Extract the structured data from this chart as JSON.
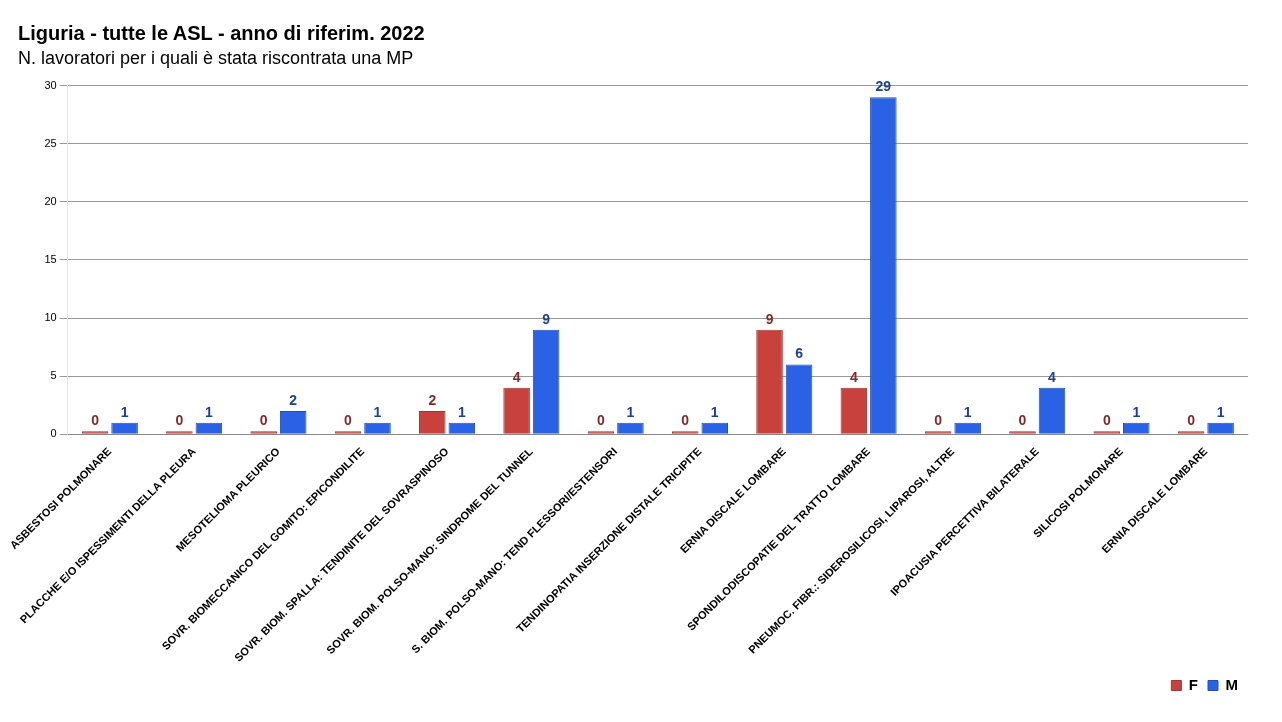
{
  "chart_data": {
    "type": "bar",
    "title": "Liguria - tutte le ASL - anno di riferim. 2022",
    "subtitle": "N. lavoratori per i quali è stata riscontrata una MP",
    "categories": [
      "ASBESTOSI POLMONARE",
      "PLACCHE E/O ISPESSIMENTI DELLA PLEURA",
      "MESOTELIOMA PLEURICO",
      "SOVR. BIOMECCANICO DEL GOMITO: EPICONDILITE",
      "SOVR. BIOM. SPALLA: TENDINITE DEL SOVRASPINOSO",
      "SOVR. BIOM. POLSO-MANO: SINDROME DEL TUNNEL",
      "S. BIOM. POLSO-MANO: TEND FLESSORI/ESTENSORI",
      "TENDINOPATIA INSERZIONE DISTALE TRICIPITE",
      "ERNIA DISCALE LOMBARE",
      "SPONDILODISCOPATIE DEL TRATTO LOMBARE",
      "PNEUMOC. FIBR.: SIDEROSILICOSI, LIPAROSI, ALTRE",
      "IPOACUSIA PERCETTIVA BILATERALE",
      "SILICOSI POLMONARE",
      "ERNIA DISCALE LOMBARE"
    ],
    "series": [
      {
        "name": "F",
        "color": "#c8413c",
        "values": [
          0,
          0,
          0,
          0,
          2,
          4,
          0,
          0,
          9,
          4,
          0,
          0,
          0,
          0
        ]
      },
      {
        "name": "M",
        "color": "#2a62e6",
        "values": [
          1,
          1,
          2,
          1,
          1,
          9,
          1,
          1,
          6,
          29,
          1,
          4,
          1,
          1
        ]
      }
    ],
    "ylim": [
      0,
      30
    ],
    "yticks": [
      0,
      5,
      10,
      15,
      20,
      25,
      30
    ],
    "grid": "y",
    "legend": "bottom right",
    "data_labels": true
  }
}
